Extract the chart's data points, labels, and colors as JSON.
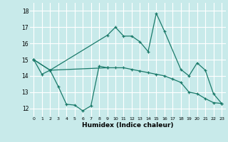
{
  "xlabel": "Humidex (Indice chaleur)",
  "bg_color": "#c8eaea",
  "line_color": "#1a7a6a",
  "grid_color": "#ffffff",
  "xlim": [
    -0.5,
    23.5
  ],
  "ylim": [
    11.5,
    18.5
  ],
  "yticks": [
    12,
    13,
    14,
    15,
    16,
    17,
    18
  ],
  "xticks": [
    0,
    1,
    2,
    3,
    4,
    5,
    6,
    7,
    8,
    9,
    10,
    11,
    12,
    13,
    14,
    15,
    16,
    17,
    18,
    19,
    20,
    21,
    22,
    23
  ],
  "line1_x": [
    0,
    1,
    2,
    3,
    4,
    5,
    6,
    7,
    8,
    9
  ],
  "line1_y": [
    15.0,
    14.1,
    14.35,
    13.35,
    12.25,
    12.2,
    11.85,
    12.15,
    14.6,
    14.5
  ],
  "line2_x": [
    0,
    2,
    9,
    10,
    11,
    12,
    13,
    14,
    15,
    16,
    18,
    19,
    20,
    21,
    22,
    23
  ],
  "line2_y": [
    15.0,
    14.35,
    16.5,
    17.0,
    16.45,
    16.45,
    16.1,
    15.5,
    17.85,
    16.75,
    14.4,
    14.0,
    14.8,
    14.35,
    12.9,
    12.3
  ],
  "line3_x": [
    0,
    2,
    9,
    10,
    11,
    12,
    13,
    14,
    15,
    16,
    17,
    18,
    19,
    20,
    21,
    22,
    23
  ],
  "line3_y": [
    15.0,
    14.35,
    14.5,
    14.5,
    14.5,
    14.4,
    14.3,
    14.2,
    14.1,
    14.0,
    13.8,
    13.6,
    13.0,
    12.9,
    12.6,
    12.35,
    12.3
  ],
  "marker": "+"
}
